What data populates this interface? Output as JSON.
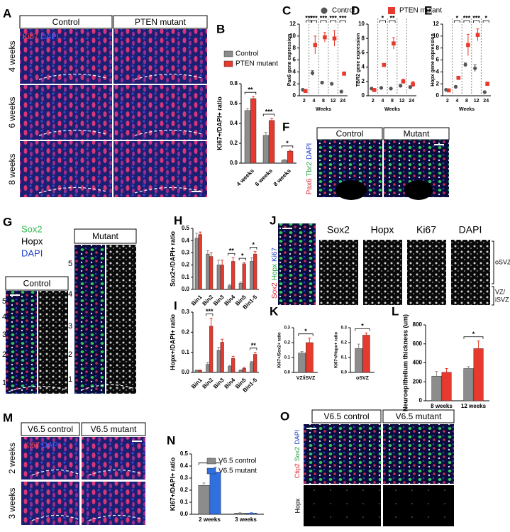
{
  "letters": [
    "A",
    "B",
    "C",
    "D",
    "E",
    "F",
    "G",
    "H",
    "I",
    "J",
    "K",
    "L",
    "M",
    "N",
    "O"
  ],
  "panels": {
    "A": {
      "headers": [
        "Control",
        "PTEN mutant"
      ],
      "rows": [
        "4 weeks",
        "6 weeks",
        "8 weeks"
      ],
      "stain": [
        "Ki67",
        "DAPI"
      ]
    },
    "F": {
      "headers": [
        "Control",
        "Mutant"
      ],
      "stain": [
        "Pax6",
        "Tbr2",
        "DAPI"
      ]
    },
    "G": {
      "stain": [
        "Sox2",
        "Hopx",
        "DAPI"
      ],
      "headers": [
        "Control",
        "Mutant"
      ],
      "control_bins": [
        "5",
        "4",
        "3",
        "2",
        "1"
      ],
      "mutant_bins": [
        "5",
        "4",
        "3",
        "2",
        "1"
      ]
    },
    "J": {
      "stain": [
        "Sox2",
        "Hopx",
        "Ki67"
      ],
      "headers": [
        "Sox2",
        "Hopx",
        "Ki67",
        "DAPI"
      ],
      "zones": [
        "oSVZ",
        "VZ/",
        "iSVZ"
      ]
    },
    "M": {
      "headers": [
        "V6.5 control",
        "V6.5 mutant"
      ],
      "rows": [
        "2 weeks",
        "3 weeks"
      ],
      "stain": [
        "Ki67",
        "DAPI"
      ]
    },
    "O": {
      "headers": [
        "V6.5 control",
        "V6.5 mutant"
      ],
      "stain": [
        "Ctip2",
        "Sox2",
        "DAPI"
      ],
      "row_label": "Hopx"
    }
  },
  "chart_data": [
    {
      "type": "bar",
      "ylabel": "Ki67+/DAPI+ ratio",
      "categories": [
        "4 weeks",
        "6 weeks",
        "8 weeks"
      ],
      "series": [
        {
          "name": "Control",
          "color": "#8c8c8c",
          "values": [
            0.53,
            0.28,
            0.03
          ],
          "errors": [
            0.02,
            0.03,
            0.005
          ]
        },
        {
          "name": "PTEN mutant",
          "color": "#e53a2d",
          "values": [
            0.65,
            0.43,
            0.12
          ],
          "errors": [
            0.02,
            0.02,
            0.01
          ]
        }
      ],
      "ylim": [
        0,
        0.8
      ],
      "yticks": [
        {
          "value": 0,
          "label": "0.0"
        },
        {
          "value": 0.2,
          "label": "0.2"
        },
        {
          "value": 0.4,
          "label": "0.4"
        },
        {
          "value": 0.6,
          "label": "0.6"
        },
        {
          "value": 0.8,
          "label": "0.8"
        }
      ],
      "annotations": [
        "**",
        "***",
        "*"
      ]
    },
    {
      "type": "dot",
      "ylabel": "Pax6 gene expression",
      "xlabel": "Weeks",
      "categories": [
        "2",
        "4",
        "8",
        "12",
        "24"
      ],
      "series": [
        {
          "name": "Control",
          "color": "#555555",
          "values": [
            1,
            3.8,
            2.2,
            2,
            0.7
          ],
          "errors": [
            0.2,
            0.4,
            0.2,
            0.2,
            0.1
          ]
        },
        {
          "name": "PTEN mutant",
          "color": "#e53a2d",
          "values": [
            0.8,
            8.5,
            9.8,
            9.6,
            3.7
          ],
          "errors": [
            0.1,
            1.5,
            0.8,
            1.3,
            0.3
          ]
        }
      ],
      "ylim": [
        0,
        12
      ],
      "yticks": [
        0,
        2,
        4,
        6,
        8,
        10,
        12
      ],
      "annotations": [
        "***",
        "***",
        "***",
        "***",
        "***"
      ]
    },
    {
      "type": "dot",
      "ylabel": "TBR2 gene expression",
      "xlabel": "Weeks",
      "categories": [
        "2",
        "4",
        "8",
        "12",
        "24"
      ],
      "series": [
        {
          "color": "#555555",
          "values": [
            1,
            1.1,
            1,
            1.4,
            1.2
          ],
          "errors": [
            0.1,
            0.1,
            0.1,
            0.2,
            0.2
          ]
        },
        {
          "color": "#e53a2d",
          "values": [
            0.8,
            4.3,
            7.3,
            2,
            1.6
          ],
          "errors": [
            0.1,
            0.2,
            0.8,
            0.3,
            0.4
          ]
        }
      ],
      "ylim": [
        0,
        10
      ],
      "yticks": [
        0,
        2,
        4,
        6,
        8,
        10
      ],
      "annotations": [
        "*",
        "**"
      ]
    },
    {
      "type": "dot",
      "ylabel": "Hopx gene expression",
      "xlabel": "Weeks",
      "categories": [
        "2",
        "4",
        "8",
        "12",
        "24"
      ],
      "series": [
        {
          "color": "#555555",
          "values": [
            1,
            1.5,
            5.2,
            4.6,
            0.6
          ],
          "errors": [
            0.1,
            0.2,
            0.3,
            0.6,
            0.2
          ]
        },
        {
          "color": "#e53a2d",
          "values": [
            0.9,
            3,
            8.5,
            10.2,
            2
          ],
          "errors": [
            0.1,
            0.2,
            1.8,
            1,
            0.3
          ]
        }
      ],
      "ylim": [
        0,
        12
      ],
      "yticks": [
        0,
        2,
        4,
        6,
        8,
        10,
        12
      ],
      "annotations": [
        "*",
        "***",
        "***",
        "*"
      ]
    },
    {
      "type": "bar",
      "ylabel": "Sox2+/DAPI+ ratio",
      "categories": [
        "Bin1",
        "Bin2",
        "Bin3",
        "Bin4",
        "Bin5",
        "Bin1-5"
      ],
      "series": [
        {
          "color": "#8c8c8c",
          "values": [
            0.42,
            0.29,
            0.2,
            0.03,
            0.05,
            0.23
          ],
          "errors": [
            0.04,
            0.03,
            0.04,
            0.01,
            0.01,
            0.03
          ]
        },
        {
          "color": "#e53a2d",
          "values": [
            0.45,
            0.27,
            0.2,
            0.23,
            0.21,
            0.29
          ],
          "errors": [
            0.02,
            0.03,
            0.04,
            0.03,
            0.01,
            0.02
          ]
        }
      ],
      "ylim": [
        0,
        0.5
      ],
      "yticks": [
        {
          "value": 0,
          "label": "0.0"
        },
        {
          "value": 0.1,
          "label": "0.1"
        },
        {
          "value": 0.2,
          "label": "0.2"
        },
        {
          "value": 0.3,
          "label": "0.3"
        },
        {
          "value": 0.4,
          "label": "0.4"
        },
        {
          "value": 0.5,
          "label": "0.5"
        }
      ],
      "annotations": [
        "**",
        "*",
        "*"
      ]
    },
    {
      "type": "bar",
      "ylabel": "Hopx+/DAPI+ ratio",
      "categories": [
        "Bin1",
        "Bin2",
        "Bin3",
        "Bin4",
        "Bin5",
        "Bin1-5"
      ],
      "series": [
        {
          "color": "#8c8c8c",
          "values": [
            0.01,
            0.04,
            0.11,
            0.03,
            0.01,
            0.05
          ],
          "errors": [
            0.002,
            0.01,
            0.015,
            0.005,
            0.003,
            0.005
          ]
        },
        {
          "color": "#e53a2d",
          "values": [
            0.01,
            0.23,
            0.15,
            0.07,
            0.02,
            0.09
          ],
          "errors": [
            0.002,
            0.04,
            0.015,
            0.01,
            0.005,
            0.01
          ]
        }
      ],
      "ylim": [
        0,
        0.3
      ],
      "yticks": [
        {
          "value": 0,
          "label": "0.0"
        },
        {
          "value": 0.1,
          "label": "0.1"
        },
        {
          "value": 0.2,
          "label": "0.2"
        },
        {
          "value": 0.3,
          "label": "0.3"
        }
      ],
      "annotations": [
        "***",
        "**"
      ]
    },
    {
      "type": "bar",
      "ylabel": "Ki67+/Sox2+ ratio",
      "categories": [
        "VZ/iSVZ"
      ],
      "series": [
        {
          "color": "#8c8c8c",
          "values": [
            0.13
          ],
          "errors": [
            0.01
          ]
        },
        {
          "color": "#e53a2d",
          "values": [
            0.2
          ],
          "errors": [
            0.03
          ]
        }
      ],
      "ylim": [
        0,
        0.3
      ],
      "yticks": [
        {
          "value": 0,
          "label": "0.0"
        },
        {
          "value": 0.1,
          "label": "0.1"
        },
        {
          "value": 0.2,
          "label": "0.2"
        },
        {
          "value": 0.3,
          "label": "0.3"
        }
      ],
      "annotations": [
        "*"
      ]
    },
    {
      "type": "bar",
      "ylabel": "Ki67+/Hopx+ ratio",
      "categories": [
        "oSVZ"
      ],
      "series": [
        {
          "color": "#8c8c8c",
          "values": [
            0.16
          ],
          "errors": [
            0.03
          ]
        },
        {
          "color": "#e53a2d",
          "values": [
            0.25
          ],
          "errors": [
            0.015
          ]
        }
      ],
      "ylim": [
        0,
        0.3
      ],
      "yticks": [
        {
          "value": 0,
          "label": "0.0"
        },
        {
          "value": 0.1,
          "label": "0.1"
        },
        {
          "value": 0.2,
          "label": "0.2"
        },
        {
          "value": 0.3,
          "label": "0.3"
        }
      ],
      "annotations": [
        "*"
      ]
    },
    {
      "type": "bar",
      "ylabel": "Neuroepithelium thickness (um)",
      "categories": [
        "8 weeks",
        "12 weeks"
      ],
      "series": [
        {
          "color": "#8c8c8c",
          "values": [
            260,
            340
          ],
          "errors": [
            50,
            20
          ]
        },
        {
          "color": "#e53a2d",
          "values": [
            300,
            550
          ],
          "errors": [
            40,
            80
          ]
        }
      ],
      "ylim": [
        0,
        800
      ],
      "yticks": [
        0,
        200,
        400,
        600,
        800
      ],
      "annotations": [
        "*"
      ]
    },
    {
      "type": "bar",
      "ylabel": "Ki67+/DAPI+ ratio",
      "categories": [
        "2 weeks",
        "3 weeks"
      ],
      "series": [
        {
          "name": "V6.5 control",
          "color": "#8c8c8c",
          "values": [
            0.24,
            0.01
          ],
          "errors": [
            0.02,
            0.003
          ]
        },
        {
          "name": "V6.5 mutant",
          "color": "#2f6fe0",
          "values": [
            0.35,
            0.01
          ],
          "errors": [
            0.04,
            0.003
          ]
        }
      ],
      "ylim": [
        0,
        0.5
      ],
      "yticks": [
        {
          "value": 0,
          "label": "0.0"
        },
        {
          "value": 0.1,
          "label": "0.1"
        },
        {
          "value": 0.2,
          "label": "0.2"
        },
        {
          "value": 0.3,
          "label": "0.3"
        },
        {
          "value": 0.4,
          "label": "0.4"
        },
        {
          "value": 0.5,
          "label": "0.5"
        }
      ],
      "annotations": [
        "*"
      ]
    }
  ]
}
